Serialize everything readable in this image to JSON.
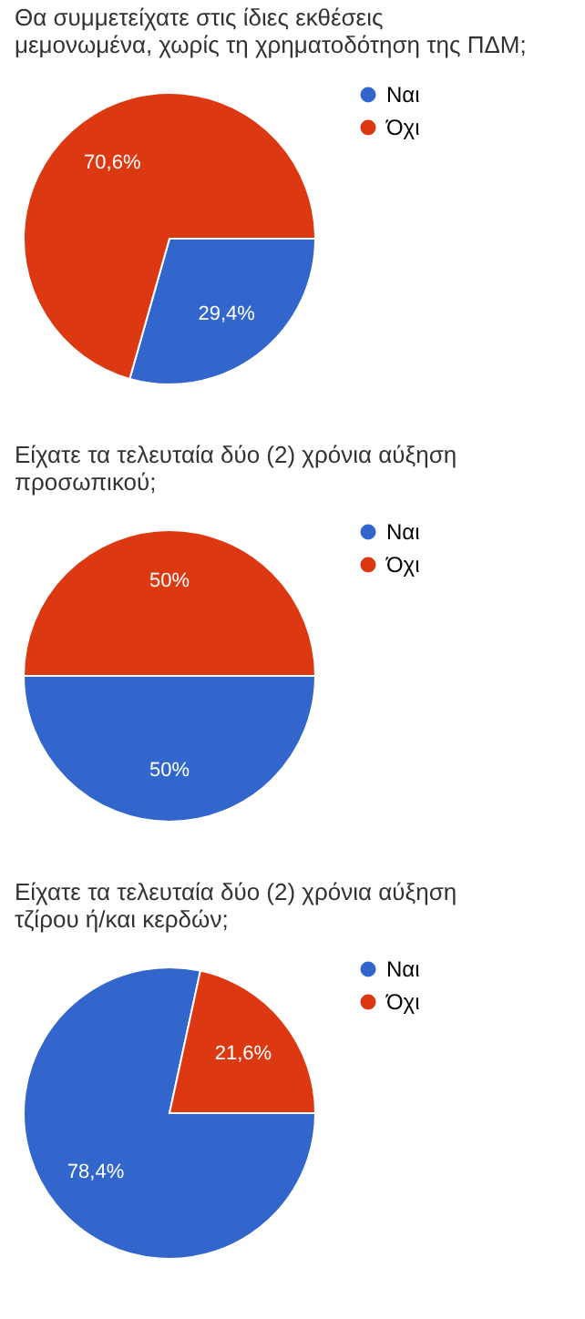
{
  "chart_data": [
    {
      "type": "pie",
      "title": "Θα συμμετείχατε στις ίδιες εκθέσεις μεμονωμένα, χωρίς τη χρηματοδότηση της ΠΔΜ;",
      "categories": [
        "Ναι",
        "Όχι"
      ],
      "values": [
        29.4,
        70.6
      ],
      "colors": [
        "#3366cc",
        "#dc3912"
      ],
      "value_labels": [
        "29,4%",
        "70,6%"
      ],
      "legend": "right"
    },
    {
      "type": "pie",
      "title": "Είχατε τα τελευταία δύο (2) χρόνια αύξηση προσωπικού;",
      "categories": [
        "Ναι",
        "Όχι"
      ],
      "values": [
        50,
        50
      ],
      "colors": [
        "#3366cc",
        "#dc3912"
      ],
      "value_labels": [
        "50%",
        "50%"
      ],
      "legend": "right"
    },
    {
      "type": "pie",
      "title": "Είχατε τα τελευταία δύο (2) χρόνια αύξηση τζίρου ή/και κερδών;",
      "categories": [
        "Ναι",
        "Όχι"
      ],
      "values": [
        78.4,
        21.6
      ],
      "colors": [
        "#3366cc",
        "#dc3912"
      ],
      "value_labels": [
        "78,4%",
        "21,6%"
      ],
      "legend": "right"
    }
  ]
}
